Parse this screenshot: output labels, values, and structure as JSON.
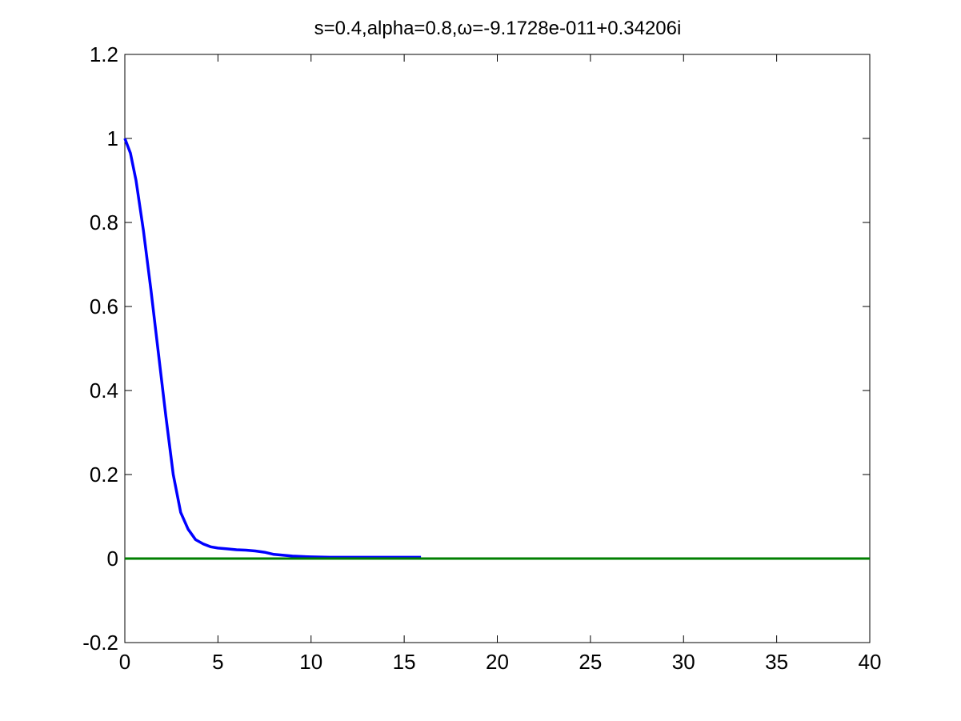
{
  "chart_data": {
    "type": "line",
    "title": "s=0.4,alpha=0.8,ω=-9.1728e-011+0.34206i",
    "xlabel": "",
    "ylabel": "",
    "xlim": [
      0,
      40
    ],
    "ylim": [
      -0.2,
      1.2
    ],
    "xticks": [
      0,
      5,
      10,
      15,
      20,
      25,
      30,
      35,
      40
    ],
    "yticks": [
      -0.2,
      0,
      0.2,
      0.4,
      0.6,
      0.8,
      1,
      1.2
    ],
    "xtick_labels": [
      "0",
      "5",
      "10",
      "15",
      "20",
      "25",
      "30",
      "35",
      "40"
    ],
    "ytick_labels": [
      "-0.2",
      "0",
      "0.2",
      "0.4",
      "0.6",
      "0.8",
      "1",
      "1.2"
    ],
    "grid": false,
    "legend": "none",
    "series": [
      {
        "color": "#0000ff",
        "x": [
          0,
          0.3,
          0.6,
          1.0,
          1.4,
          1.8,
          2.2,
          2.6,
          3.0,
          3.4,
          3.8,
          4.2,
          4.6,
          5.0,
          5.5,
          6.0,
          6.5,
          7.0,
          7.5,
          8.0,
          9.0,
          10.0,
          11.0,
          12.0,
          13.0,
          14.0,
          15.0,
          15.9
        ],
        "y": [
          1.0,
          0.965,
          0.9,
          0.78,
          0.64,
          0.49,
          0.34,
          0.2,
          0.11,
          0.07,
          0.045,
          0.035,
          0.028,
          0.025,
          0.023,
          0.021,
          0.02,
          0.018,
          0.015,
          0.01,
          0.006,
          0.004,
          0.003,
          0.003,
          0.003,
          0.003,
          0.003,
          0.003
        ]
      },
      {
        "color": "#007f00",
        "x": [
          0,
          40
        ],
        "y": [
          0,
          0
        ]
      }
    ]
  }
}
